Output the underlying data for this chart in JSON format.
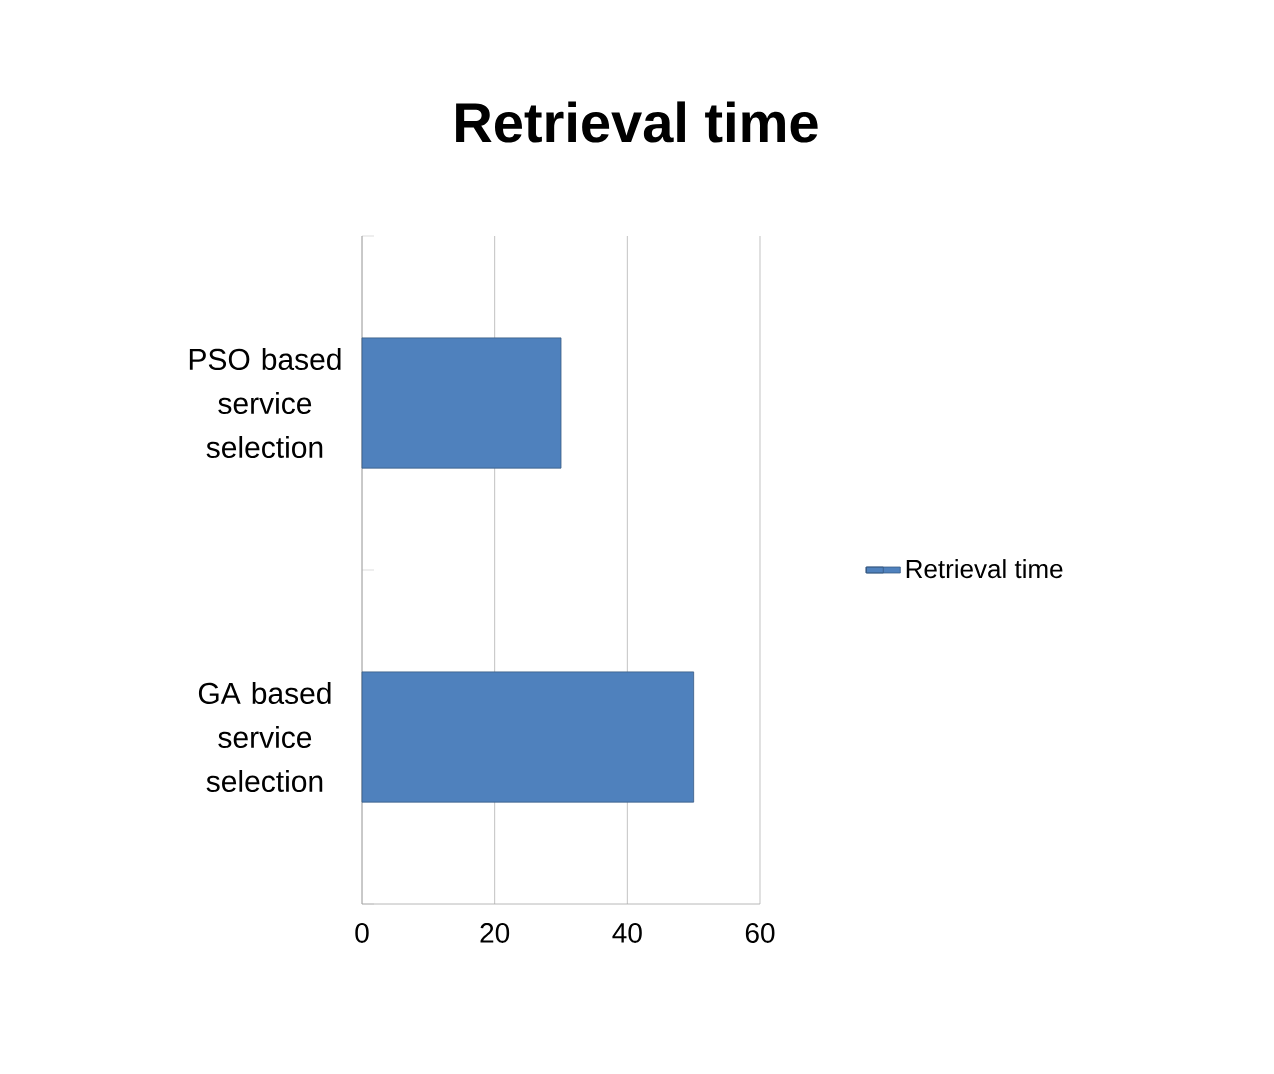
{
  "chart_data": {
    "type": "bar",
    "orientation": "horizontal",
    "title": "Retrieval time",
    "categories": [
      "PSO based service selection",
      "GA based service selection"
    ],
    "series": [
      {
        "name": "Retrieval time",
        "color": "#4f81bd",
        "values": [
          30,
          50
        ]
      }
    ],
    "xlim": [
      0,
      60
    ],
    "xticks": [
      0,
      20,
      40,
      60
    ],
    "grid": "x",
    "legend": "right"
  }
}
